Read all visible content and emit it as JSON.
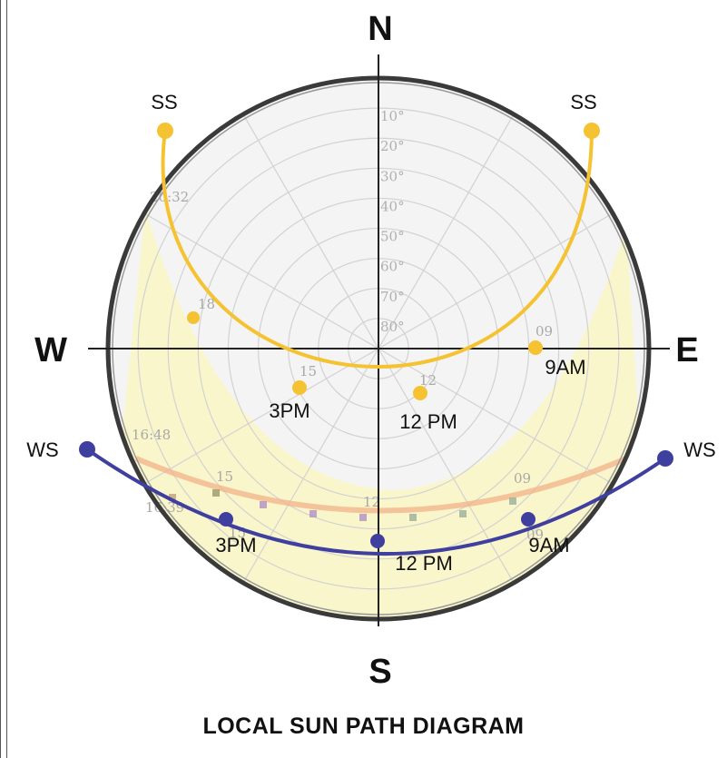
{
  "compass": {
    "north": "N",
    "south": "S",
    "east": "E",
    "west": "W"
  },
  "altitude_rings": [
    "10°",
    "20°",
    "30°",
    "40°",
    "50°",
    "60°",
    "70°",
    "80°"
  ],
  "summer_solstice": {
    "label_left": "SS",
    "label_right": "SS",
    "time_3pm": "3PM",
    "time_noon": "12 PM",
    "time_9am": "9AM",
    "color": "#f5c232"
  },
  "winter_solstice": {
    "label_left": "WS",
    "label_right": "WS",
    "time_3pm": "3PM",
    "time_noon": "12 PM",
    "time_9am": "9AM",
    "color": "#3f3f9f"
  },
  "background_labels": {
    "ss_sunset": "20:32",
    "ss_hour_18": "18",
    "ss_hour_15": "15",
    "ss_hour_12": "12",
    "ss_hour_09": "09",
    "ws_sunset": "16:48",
    "ws_hour_15": "15",
    "ws_hour_12": "12",
    "ws_hour_09": "09",
    "ws2_time": "16:39",
    "ws2_hour_15": "15",
    "ws2_hour_09": "09"
  },
  "title": "LOCAL SUN PATH DIAGRAM"
}
